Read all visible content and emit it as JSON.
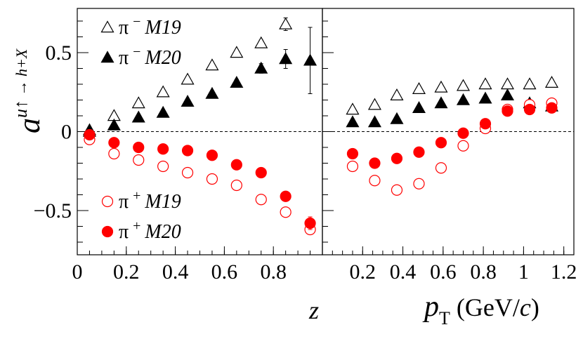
{
  "chart_data": {
    "type": "scatter",
    "ylabel": {
      "base": "a",
      "sup_main": "u↑",
      "sup_rest": " → h+X"
    },
    "ylim": [
      -0.78,
      0.78
    ],
    "y_ticks": [
      -0.5,
      0,
      0.5
    ],
    "y_tick_labels": [
      "−0.5",
      "0",
      "0.5"
    ],
    "colors": {
      "m19_minus": "#000000",
      "m20_minus": "#000000",
      "m19_plus": "#ff0000",
      "m20_plus": "#ff0000"
    },
    "panels": [
      {
        "id": "z",
        "xlabel": "z",
        "xlim": [
          0,
          1.0
        ],
        "x_ticks": [
          0,
          0.2,
          0.4,
          0.6,
          0.8
        ],
        "x_tick_labels": [
          "0",
          "0.2",
          "0.4",
          "0.6",
          "0.8"
        ],
        "series": [
          {
            "name": "π − M19",
            "marker": "triangle-open",
            "color": "#000000",
            "x": [
              0.05,
              0.15,
              0.25,
              0.35,
              0.45,
              0.55,
              0.65,
              0.75,
              0.85
            ],
            "y": [
              0.01,
              0.1,
              0.18,
              0.25,
              0.33,
              0.42,
              0.5,
              0.56,
              0.68
            ],
            "err": [
              0.01,
              0.01,
              0.01,
              0.01,
              0.01,
              0.01,
              0.01,
              0.02,
              0.04
            ]
          },
          {
            "name": "π − M20",
            "marker": "triangle-filled",
            "color": "#000000",
            "x": [
              0.05,
              0.15,
              0.25,
              0.35,
              0.45,
              0.55,
              0.65,
              0.75,
              0.85,
              0.95
            ],
            "y": [
              0.0,
              0.04,
              0.09,
              0.12,
              0.19,
              0.24,
              0.31,
              0.4,
              0.46,
              0.45
            ],
            "err": [
              0.01,
              0.01,
              0.01,
              0.01,
              0.01,
              0.01,
              0.02,
              0.03,
              0.06,
              0.21
            ]
          },
          {
            "name": "π + M19",
            "marker": "circle-open",
            "color": "#ff0000",
            "x": [
              0.05,
              0.15,
              0.25,
              0.35,
              0.45,
              0.55,
              0.65,
              0.75,
              0.85,
              0.95
            ],
            "y": [
              -0.05,
              -0.14,
              -0.18,
              -0.22,
              -0.26,
              -0.3,
              -0.34,
              -0.43,
              -0.51,
              -0.62
            ],
            "err": [
              0.01,
              0.01,
              0.01,
              0.01,
              0.01,
              0.01,
              0.01,
              0.01,
              0.02,
              0.03
            ]
          },
          {
            "name": "π + M20",
            "marker": "circle-filled",
            "color": "#ff0000",
            "x": [
              0.05,
              0.15,
              0.25,
              0.35,
              0.45,
              0.55,
              0.65,
              0.75,
              0.85,
              0.95
            ],
            "y": [
              -0.02,
              -0.07,
              -0.1,
              -0.11,
              -0.12,
              -0.15,
              -0.21,
              -0.26,
              -0.41,
              -0.58
            ],
            "err": [
              0.01,
              0.01,
              0.01,
              0.01,
              0.01,
              0.01,
              0.01,
              0.01,
              0.02,
              0.04
            ]
          }
        ]
      },
      {
        "id": "pT",
        "xlabel": "p",
        "xlabel_sub": "T",
        "xlabel_units_pre": " (GeV/",
        "xlabel_units_c": "c",
        "xlabel_units_post": ")",
        "xlim": [
          0,
          1.25
        ],
        "x_ticks": [
          0.2,
          0.4,
          0.6,
          0.8,
          1.0,
          1.2
        ],
        "x_tick_labels": [
          "0.2",
          "0.4",
          "0.6",
          "0.8",
          "1",
          "1.2"
        ],
        "series": [
          {
            "name": "π − M19",
            "marker": "triangle-open",
            "color": "#000000",
            "x": [
              0.15,
              0.26,
              0.37,
              0.48,
              0.59,
              0.7,
              0.81,
              0.92,
              1.03,
              1.14
            ],
            "y": [
              0.14,
              0.17,
              0.23,
              0.27,
              0.28,
              0.29,
              0.3,
              0.3,
              0.3,
              0.31
            ],
            "err": [
              0.01,
              0.01,
              0.01,
              0.01,
              0.01,
              0.01,
              0.01,
              0.01,
              0.01,
              0.02
            ]
          },
          {
            "name": "π − M20",
            "marker": "triangle-filled",
            "color": "#000000",
            "x": [
              0.15,
              0.26,
              0.37,
              0.48,
              0.59,
              0.7,
              0.81,
              0.92,
              1.03,
              1.14
            ],
            "y": [
              0.06,
              0.06,
              0.08,
              0.15,
              0.18,
              0.2,
              0.21,
              0.23,
              0.18,
              0.16
            ],
            "err": [
              0.01,
              0.01,
              0.01,
              0.01,
              0.01,
              0.01,
              0.01,
              0.01,
              0.02,
              0.03
            ]
          },
          {
            "name": "π + M19",
            "marker": "circle-open",
            "color": "#ff0000",
            "x": [
              0.15,
              0.26,
              0.37,
              0.48,
              0.59,
              0.7,
              0.81,
              0.92,
              1.03,
              1.14
            ],
            "y": [
              -0.22,
              -0.31,
              -0.37,
              -0.33,
              -0.23,
              -0.09,
              0.02,
              0.14,
              0.17,
              0.18
            ],
            "err": [
              0.01,
              0.01,
              0.01,
              0.01,
              0.01,
              0.01,
              0.01,
              0.01,
              0.01,
              0.02
            ]
          },
          {
            "name": "π + M20",
            "marker": "circle-filled",
            "color": "#ff0000",
            "x": [
              0.15,
              0.26,
              0.37,
              0.48,
              0.59,
              0.7,
              0.81,
              0.92,
              1.03,
              1.14
            ],
            "y": [
              -0.14,
              -0.2,
              -0.17,
              -0.13,
              -0.07,
              -0.01,
              0.05,
              0.13,
              0.14,
              0.15
            ],
            "err": [
              0.01,
              0.01,
              0.01,
              0.01,
              0.01,
              0.01,
              0.01,
              0.01,
              0.02,
              0.03
            ]
          }
        ]
      }
    ],
    "legend": {
      "top": [
        {
          "marker": "triangle-open",
          "color": "#000000",
          "particle": "π",
          "charge": "−",
          "model": "M19"
        },
        {
          "marker": "triangle-filled",
          "color": "#000000",
          "particle": "π",
          "charge": "−",
          "model": "M20"
        }
      ],
      "bottom": [
        {
          "marker": "circle-open",
          "color": "#ff0000",
          "particle": "π",
          "charge": "+",
          "model": "M19"
        },
        {
          "marker": "circle-filled",
          "color": "#ff0000",
          "particle": "π",
          "charge": "+",
          "model": "M20"
        }
      ]
    }
  }
}
